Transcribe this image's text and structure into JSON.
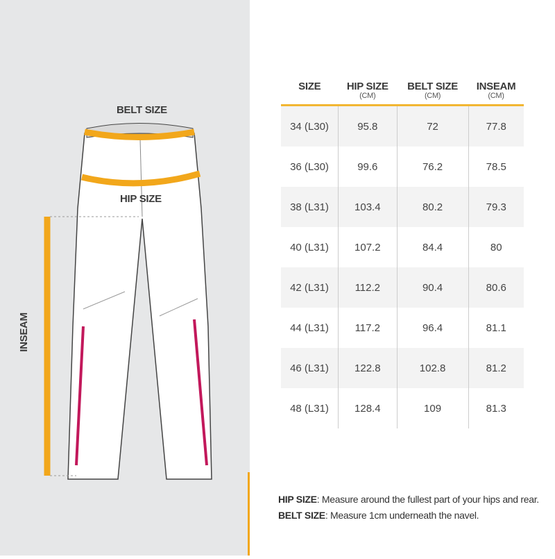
{
  "illustration": {
    "belt_label": "BELT SIZE",
    "hip_label": "HIP SIZE",
    "inseam_label": "INSEAM",
    "colors": {
      "tape": "#f2a71b",
      "stripe": "#c2185b",
      "background": "#e6e7e8"
    }
  },
  "table": {
    "headers": [
      {
        "title": "SIZE",
        "unit": ""
      },
      {
        "title": "HIP SIZE",
        "unit": "(CM)"
      },
      {
        "title": "BELT SIZE",
        "unit": "(CM)"
      },
      {
        "title": "INSEAM",
        "unit": "(CM)"
      }
    ],
    "rows": [
      [
        "34 (L30)",
        "95.8",
        "72",
        "77.8"
      ],
      [
        "36 (L30)",
        "99.6",
        "76.2",
        "78.5"
      ],
      [
        "38 (L31)",
        "103.4",
        "80.2",
        "79.3"
      ],
      [
        "40 (L31)",
        "107.2",
        "84.4",
        "80"
      ],
      [
        "42 (L31)",
        "112.2",
        "90.4",
        "80.6"
      ],
      [
        "44 (L31)",
        "117.2",
        "96.4",
        "81.1"
      ],
      [
        "46 (L31)",
        "122.8",
        "102.8",
        "81.2"
      ],
      [
        "48 (L31)",
        "128.4",
        "109",
        "81.3"
      ]
    ]
  },
  "notes": [
    {
      "term": "HIP SIZE",
      "text": ": Measure around the fullest part of your hips and rear."
    },
    {
      "term": "BELT SIZE",
      "text": ": Measure 1cm underneath the navel."
    }
  ]
}
